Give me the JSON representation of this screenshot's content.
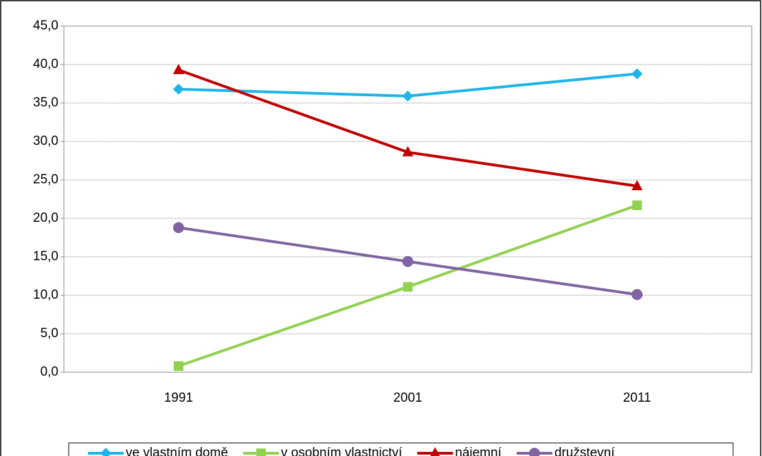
{
  "chart_data": {
    "type": "line",
    "categories": [
      "1991",
      "2001",
      "2011"
    ],
    "series": [
      {
        "name": "ve vlastním domě",
        "color": "#1eb4e8",
        "marker": "diamond",
        "values": [
          36.8,
          35.9,
          38.8
        ]
      },
      {
        "name": "v osobním vlastnictví",
        "color": "#92d050",
        "marker": "square",
        "values": [
          0.8,
          11.1,
          21.7
        ]
      },
      {
        "name": "nájemní",
        "color": "#c00000",
        "marker": "triangle",
        "values": [
          39.3,
          28.6,
          24.2
        ]
      },
      {
        "name": "družstevní",
        "color": "#8064a2",
        "marker": "circle",
        "values": [
          18.8,
          14.4,
          10.1
        ]
      }
    ],
    "ylim": [
      0,
      45
    ],
    "yticks": [
      {
        "value": 0,
        "label": "0,0"
      },
      {
        "value": 5,
        "label": "5,0"
      },
      {
        "value": 10,
        "label": "10,0"
      },
      {
        "value": 15,
        "label": "15,0"
      },
      {
        "value": 20,
        "label": "20,0"
      },
      {
        "value": 25,
        "label": "25,0"
      },
      {
        "value": 30,
        "label": "30,0"
      },
      {
        "value": 35,
        "label": "35,0"
      },
      {
        "value": 40,
        "label": "40,0"
      },
      {
        "value": 45,
        "label": "45,0"
      }
    ],
    "grid": true,
    "legend": "bottom"
  }
}
